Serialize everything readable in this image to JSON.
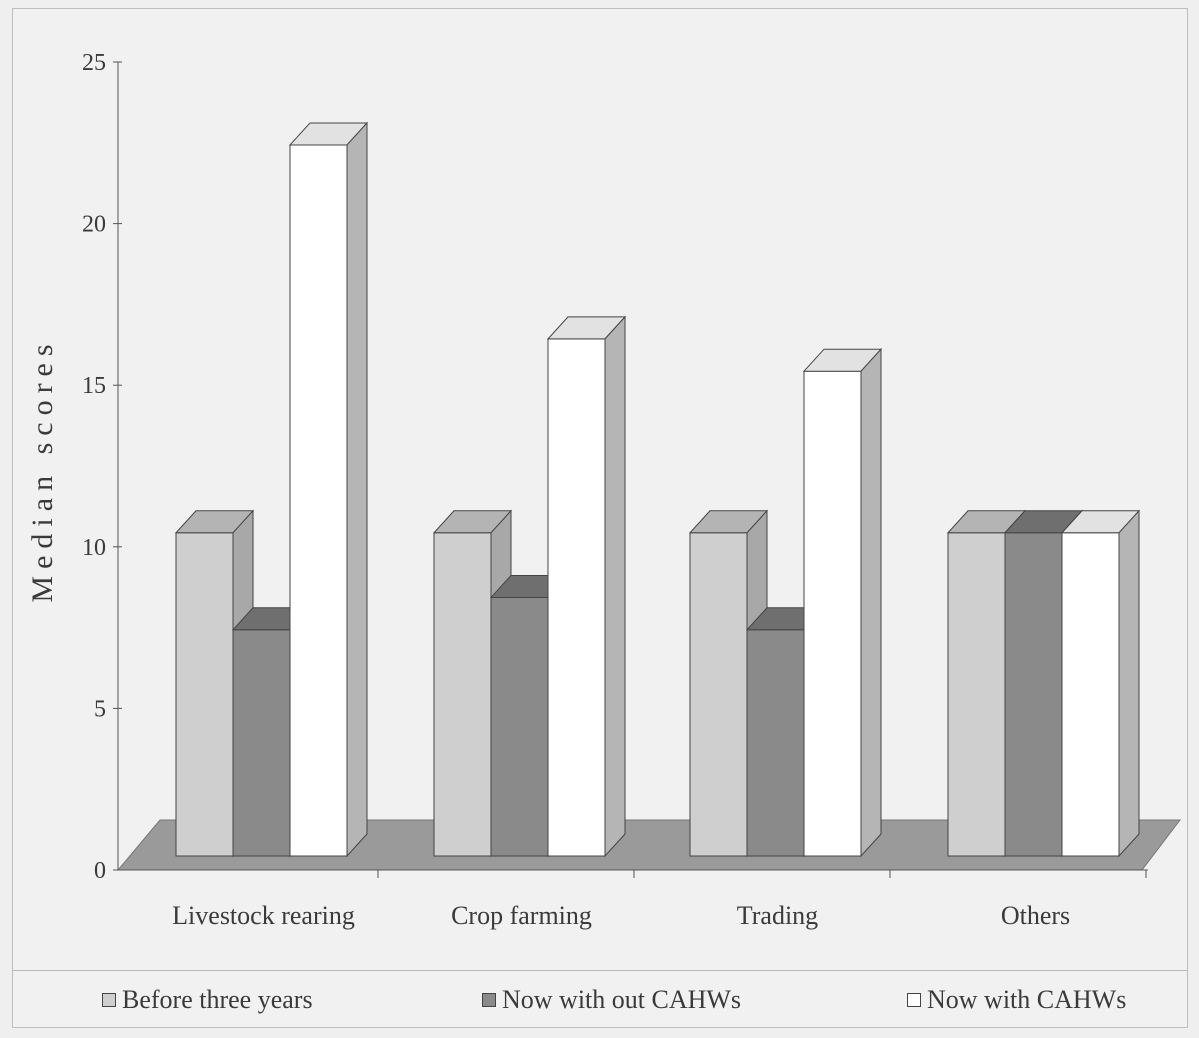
{
  "chart_data": {
    "type": "bar",
    "ylabel": "Median scores",
    "xlabel": "",
    "ylim": [
      0,
      25
    ],
    "yticks": [
      0,
      5,
      10,
      15,
      20,
      25
    ],
    "categories": [
      "Livestock rearing",
      "Crop farming",
      "Trading",
      "Others"
    ],
    "series": [
      {
        "name": "Before three years",
        "values": [
          10,
          10,
          10,
          10
        ],
        "color": "#cfcfcf"
      },
      {
        "name": "Now with out CAHWs",
        "values": [
          7,
          8,
          7,
          10
        ],
        "color": "#8a8a8a"
      },
      {
        "name": "Now with CAHWs",
        "values": [
          22,
          16,
          15,
          10
        ],
        "color": "#ffffff"
      }
    ],
    "legend_position": "bottom",
    "style": "3d"
  }
}
